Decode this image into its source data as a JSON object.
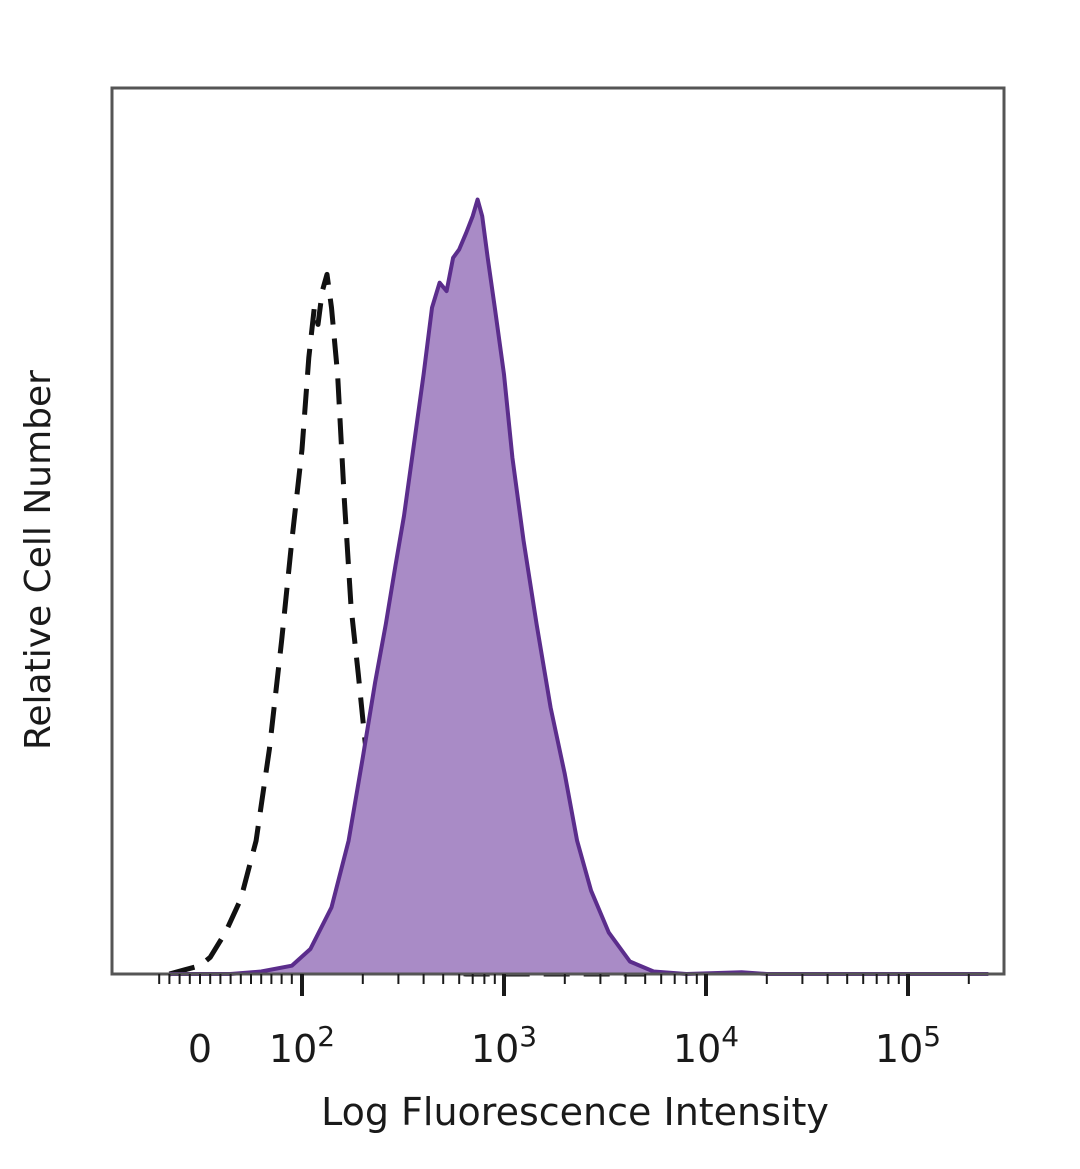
{
  "chart_data": {
    "type": "area",
    "title": "",
    "xlabel": "Log Fluorescence Intensity",
    "ylabel": "Relative Cell Number",
    "x_scale": "biexponential",
    "xlim": [
      -40,
      250000
    ],
    "ylim": [
      0,
      1.0
    ],
    "grid": false,
    "legend": "none",
    "x_tick_labels": [
      {
        "value": 0,
        "base": "0",
        "exp": ""
      },
      {
        "value": 100,
        "base": "10",
        "exp": "2"
      },
      {
        "value": 1000,
        "base": "10",
        "exp": "3"
      },
      {
        "value": 10000,
        "base": "10",
        "exp": "4"
      },
      {
        "value": 100000,
        "base": "10",
        "exp": "5"
      }
    ],
    "series": [
      {
        "style": "dashed",
        "color": "#111111",
        "filled": false,
        "points": [
          [
            -30,
            0.0
          ],
          [
            -15,
            0.005
          ],
          [
            0,
            0.01
          ],
          [
            10,
            0.02
          ],
          [
            25,
            0.05
          ],
          [
            40,
            0.09
          ],
          [
            55,
            0.16
          ],
          [
            68,
            0.27
          ],
          [
            80,
            0.4
          ],
          [
            90,
            0.52
          ],
          [
            100,
            0.63
          ],
          [
            108,
            0.74
          ],
          [
            115,
            0.8
          ],
          [
            120,
            0.78
          ],
          [
            126,
            0.82
          ],
          [
            133,
            0.84
          ],
          [
            140,
            0.8
          ],
          [
            150,
            0.72
          ],
          [
            162,
            0.57
          ],
          [
            175,
            0.44
          ],
          [
            190,
            0.36
          ],
          [
            205,
            0.28
          ],
          [
            225,
            0.2
          ],
          [
            250,
            0.13
          ],
          [
            290,
            0.07
          ],
          [
            340,
            0.03
          ],
          [
            420,
            0.008
          ],
          [
            520,
            0.002
          ],
          [
            650,
            0.0
          ],
          [
            5000,
            0.0
          ]
        ]
      },
      {
        "style": "solid",
        "color": "#5b2d8c",
        "fill": "#a98bc6",
        "filled": true,
        "points": [
          [
            -30,
            0.0
          ],
          [
            30,
            0.0
          ],
          [
            60,
            0.003
          ],
          [
            90,
            0.01
          ],
          [
            110,
            0.03
          ],
          [
            140,
            0.08
          ],
          [
            170,
            0.16
          ],
          [
            200,
            0.26
          ],
          [
            230,
            0.35
          ],
          [
            260,
            0.42
          ],
          [
            290,
            0.49
          ],
          [
            320,
            0.55
          ],
          [
            360,
            0.64
          ],
          [
            400,
            0.72
          ],
          [
            440,
            0.8
          ],
          [
            480,
            0.83
          ],
          [
            520,
            0.82
          ],
          [
            560,
            0.86
          ],
          [
            600,
            0.87
          ],
          [
            650,
            0.89
          ],
          [
            700,
            0.91
          ],
          [
            740,
            0.93
          ],
          [
            780,
            0.91
          ],
          [
            830,
            0.86
          ],
          [
            900,
            0.8
          ],
          [
            1000,
            0.72
          ],
          [
            1100,
            0.62
          ],
          [
            1250,
            0.52
          ],
          [
            1450,
            0.42
          ],
          [
            1700,
            0.32
          ],
          [
            2000,
            0.24
          ],
          [
            2300,
            0.16
          ],
          [
            2700,
            0.1
          ],
          [
            3300,
            0.05
          ],
          [
            4200,
            0.015
          ],
          [
            5500,
            0.003
          ],
          [
            8000,
            0.0
          ],
          [
            15000,
            0.002
          ],
          [
            20000,
            0.0
          ],
          [
            250000,
            0.0
          ]
        ]
      }
    ]
  }
}
